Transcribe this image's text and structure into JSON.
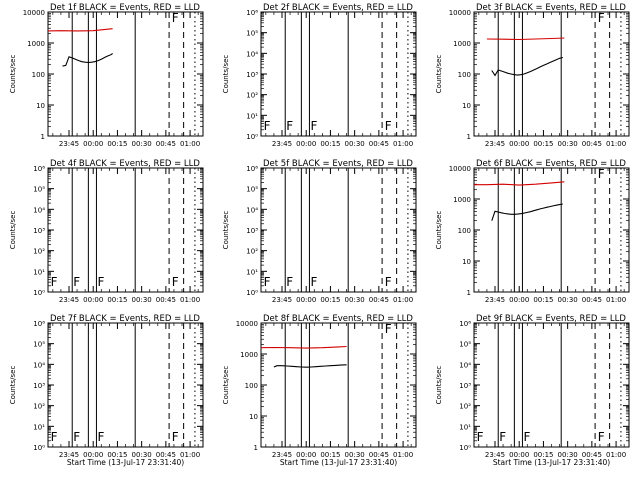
{
  "figure": {
    "x_tick_labels": [
      "23:45",
      "00:00",
      "00:15",
      "00:30",
      "00:45",
      "01:00"
    ],
    "x_ticks_minutes": [
      0,
      15,
      30,
      45,
      60,
      75
    ],
    "x_axis_range_minutes": [
      -13,
      83
    ],
    "ylabel": "Counts/sec",
    "xlabel_full": "Start Time (13-Jul-17 23:31:40)",
    "event_color": "#000000",
    "lld_color": "#d40000",
    "flag_label": "F",
    "shared_vlines_minutes": {
      "solid": [
        2,
        12,
        17,
        41
      ],
      "dashed": [
        62,
        71
      ],
      "dotted": [
        78
      ]
    }
  },
  "chart_data": [
    {
      "type": "line",
      "title": "Det 1f BLACK = Events, RED = LLD",
      "xlabel": "",
      "yscale": "log",
      "ylim": [
        1,
        10000
      ],
      "y_tick_labels": [
        "1",
        "10",
        "100",
        "1000",
        "10000"
      ],
      "series": [
        {
          "color": "black",
          "x": [
            -4,
            -2,
            0,
            2,
            4,
            6,
            8,
            10,
            12,
            14,
            16,
            18,
            20,
            22,
            24,
            26,
            27
          ],
          "y": [
            180,
            190,
            360,
            330,
            300,
            270,
            250,
            240,
            235,
            240,
            250,
            270,
            300,
            340,
            380,
            420,
            460
          ]
        },
        {
          "color": "red",
          "x": [
            -13,
            -5,
            5,
            15,
            27
          ],
          "y": [
            2450,
            2500,
            2450,
            2500,
            2900
          ]
        }
      ],
      "markers": [
        {
          "label": "F",
          "x": 63
        }
      ]
    },
    {
      "type": "line",
      "title": "Det 2f BLACK = Events, RED = LLD",
      "xlabel": "",
      "yscale": "log",
      "ylim": [
        1,
        1000000
      ],
      "y_tick_labels": [
        "10⁰",
        "10¹",
        "10²",
        "10³",
        "10⁴",
        "10⁵",
        "10⁶"
      ],
      "series": [],
      "markers": [
        {
          "label": "F",
          "x": -12
        },
        {
          "label": "F",
          "x": 2
        },
        {
          "label": "F",
          "x": 17
        },
        {
          "label": "F",
          "x": 63
        }
      ]
    },
    {
      "type": "line",
      "title": "Det 3f BLACK = Events, RED = LLD",
      "xlabel": "",
      "yscale": "log",
      "ylim": [
        1,
        10000
      ],
      "y_tick_labels": [
        "1",
        "10",
        "100",
        "1000",
        "10000"
      ],
      "series": [
        {
          "color": "black",
          "x": [
            -2,
            0,
            2,
            4,
            6,
            8,
            10,
            12,
            14,
            16,
            18,
            20,
            22,
            24,
            26,
            28,
            30,
            32,
            34,
            36,
            38,
            40,
            42
          ],
          "y": [
            130,
            90,
            135,
            125,
            115,
            105,
            100,
            95,
            92,
            95,
            100,
            110,
            120,
            135,
            150,
            170,
            190,
            210,
            235,
            260,
            290,
            320,
            340
          ]
        },
        {
          "color": "red",
          "x": [
            -5,
            5,
            15,
            25,
            35,
            43
          ],
          "y": [
            1350,
            1330,
            1300,
            1350,
            1400,
            1450
          ]
        }
      ],
      "markers": [
        {
          "label": "F",
          "x": 63
        }
      ]
    },
    {
      "type": "line",
      "title": "Det 4f BLACK = Events, RED = LLD",
      "xlabel": "",
      "yscale": "log",
      "ylim": [
        1,
        1000000
      ],
      "y_tick_labels": [
        "10⁰",
        "10¹",
        "10²",
        "10³",
        "10⁴",
        "10⁵",
        "10⁶"
      ],
      "series": [],
      "markers": [
        {
          "label": "F",
          "x": -12
        },
        {
          "label": "F",
          "x": 2
        },
        {
          "label": "F",
          "x": 17
        },
        {
          "label": "F",
          "x": 63
        }
      ]
    },
    {
      "type": "line",
      "title": "Det 5f BLACK = Events, RED = LLD",
      "xlabel": "",
      "yscale": "log",
      "ylim": [
        1,
        1000000
      ],
      "y_tick_labels": [
        "10⁰",
        "10¹",
        "10²",
        "10³",
        "10⁴",
        "10⁵",
        "10⁶"
      ],
      "series": [],
      "markers": [
        {
          "label": "F",
          "x": -12
        },
        {
          "label": "F",
          "x": 2
        },
        {
          "label": "F",
          "x": 17
        },
        {
          "label": "F",
          "x": 63
        }
      ]
    },
    {
      "type": "line",
      "title": "Det 6f BLACK = Events, RED = LLD",
      "xlabel": "",
      "yscale": "log",
      "ylim": [
        1,
        10000
      ],
      "y_tick_labels": [
        "1",
        "10",
        "100",
        "1000",
        "10000"
      ],
      "series": [
        {
          "color": "black",
          "x": [
            -2,
            0,
            2,
            4,
            6,
            8,
            10,
            12,
            14,
            16,
            18,
            20,
            22,
            24,
            26,
            28,
            30,
            32,
            34,
            36,
            38,
            40,
            42
          ],
          "y": [
            200,
            400,
            380,
            360,
            340,
            330,
            320,
            320,
            325,
            335,
            350,
            370,
            390,
            420,
            450,
            480,
            510,
            540,
            570,
            600,
            630,
            660,
            690
          ]
        },
        {
          "color": "red",
          "x": [
            -13,
            -5,
            5,
            15,
            25,
            35,
            43
          ],
          "y": [
            2900,
            2900,
            3000,
            2800,
            3000,
            3300,
            3600
          ]
        }
      ],
      "markers": [
        {
          "label": "F",
          "x": 63
        }
      ]
    },
    {
      "type": "line",
      "title": "Det 7f BLACK = Events, RED = LLD",
      "xlabel": "Start Time (13-Jul-17 23:31:40)",
      "yscale": "log",
      "ylim": [
        1,
        1000000
      ],
      "y_tick_labels": [
        "10⁰",
        "10¹",
        "10²",
        "10³",
        "10⁴",
        "10⁵",
        "10⁶"
      ],
      "series": [],
      "markers": [
        {
          "label": "F",
          "x": -12
        },
        {
          "label": "F",
          "x": 2
        },
        {
          "label": "F",
          "x": 17
        },
        {
          "label": "F",
          "x": 63
        }
      ]
    },
    {
      "type": "line",
      "title": "Det 8f BLACK = Events, RED = LLD",
      "xlabel": "Start Time (13-Jul-17 23:31:40)",
      "yscale": "log",
      "ylim": [
        1,
        10000
      ],
      "y_tick_labels": [
        "1",
        "10",
        "100",
        "1000",
        "10000"
      ],
      "series": [
        {
          "color": "black",
          "x": [
            -5,
            -3,
            0,
            3,
            6,
            9,
            12,
            15,
            18,
            21,
            24,
            27,
            30,
            33,
            36,
            40
          ],
          "y": [
            380,
            420,
            420,
            410,
            400,
            390,
            380,
            375,
            380,
            390,
            400,
            410,
            420,
            430,
            440,
            450
          ]
        },
        {
          "color": "red",
          "x": [
            -13,
            -5,
            5,
            15,
            25,
            35,
            40
          ],
          "y": [
            1600,
            1620,
            1600,
            1550,
            1600,
            1700,
            1750
          ]
        }
      ],
      "markers": [
        {
          "label": "F",
          "x": 63
        }
      ]
    },
    {
      "type": "line",
      "title": "Det 9f BLACK = Events, RED = LLD",
      "xlabel": "Start Time (13-Jul-17 23:31:40)",
      "yscale": "log",
      "ylim": [
        1,
        1000000
      ],
      "y_tick_labels": [
        "10⁰",
        "10¹",
        "10²",
        "10³",
        "10⁴",
        "10⁵",
        "10⁶"
      ],
      "series": [],
      "markers": [
        {
          "label": "F",
          "x": -12
        },
        {
          "label": "F",
          "x": 2
        },
        {
          "label": "F",
          "x": 17
        },
        {
          "label": "F",
          "x": 63
        }
      ]
    }
  ]
}
